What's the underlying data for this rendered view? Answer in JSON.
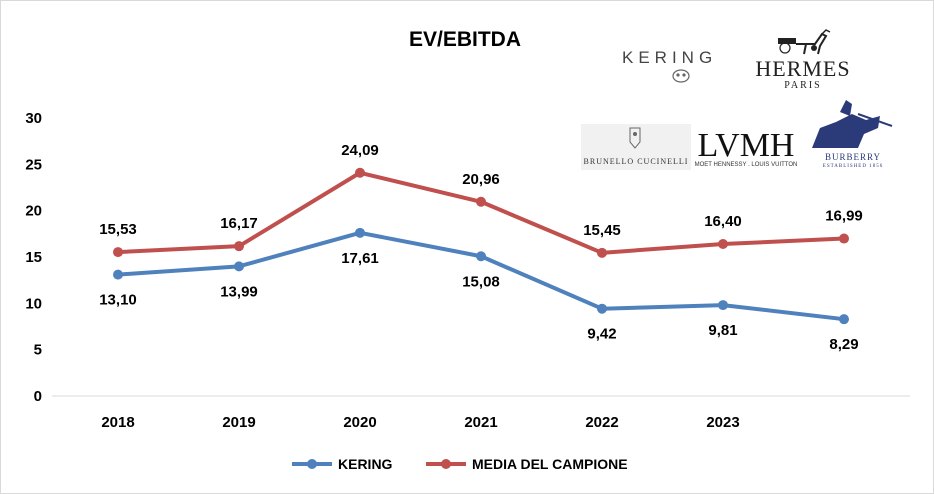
{
  "chart_data": {
    "type": "line",
    "title": "EV/EBITDA",
    "categories": [
      "2018",
      "2019",
      "2020",
      "2021",
      "2022",
      "2023",
      ""
    ],
    "series": [
      {
        "name": "KERING",
        "color": "#4f81bd",
        "values": [
          13.1,
          13.99,
          17.61,
          15.08,
          9.42,
          9.81,
          8.29
        ],
        "labels": [
          "13,10",
          "13,99",
          "17,61",
          "15,08",
          "9,42",
          "9,81",
          "8,29"
        ]
      },
      {
        "name": "MEDIA DEL CAMPIONE",
        "color": "#c0504d",
        "values": [
          15.53,
          16.17,
          24.09,
          20.96,
          15.45,
          16.4,
          16.99
        ],
        "labels": [
          "15,53",
          "16,17",
          "24,09",
          "20,96",
          "15,45",
          "16,40",
          "16,99"
        ]
      }
    ],
    "ylim": [
      0,
      30
    ],
    "yticks": [
      "0",
      "5",
      "10",
      "15",
      "20",
      "25",
      "30"
    ],
    "ytick_values": [
      0,
      5,
      10,
      15,
      20,
      25,
      30
    ],
    "xlabel": "",
    "ylabel": "",
    "grid": false,
    "legend_position": "bottom"
  },
  "logos": {
    "kering": "KERING",
    "hermes": "HERMES",
    "hermes_sub": "PARIS",
    "lvmh": "LVMH",
    "lvmh_sub": "MOET HENNESSY . LOUIS VUITTON",
    "brunello": "BRUNELLO CUCINELLI",
    "burberry": "BURBERRY",
    "burberry_sub": "ESTABLISHED 1856"
  }
}
